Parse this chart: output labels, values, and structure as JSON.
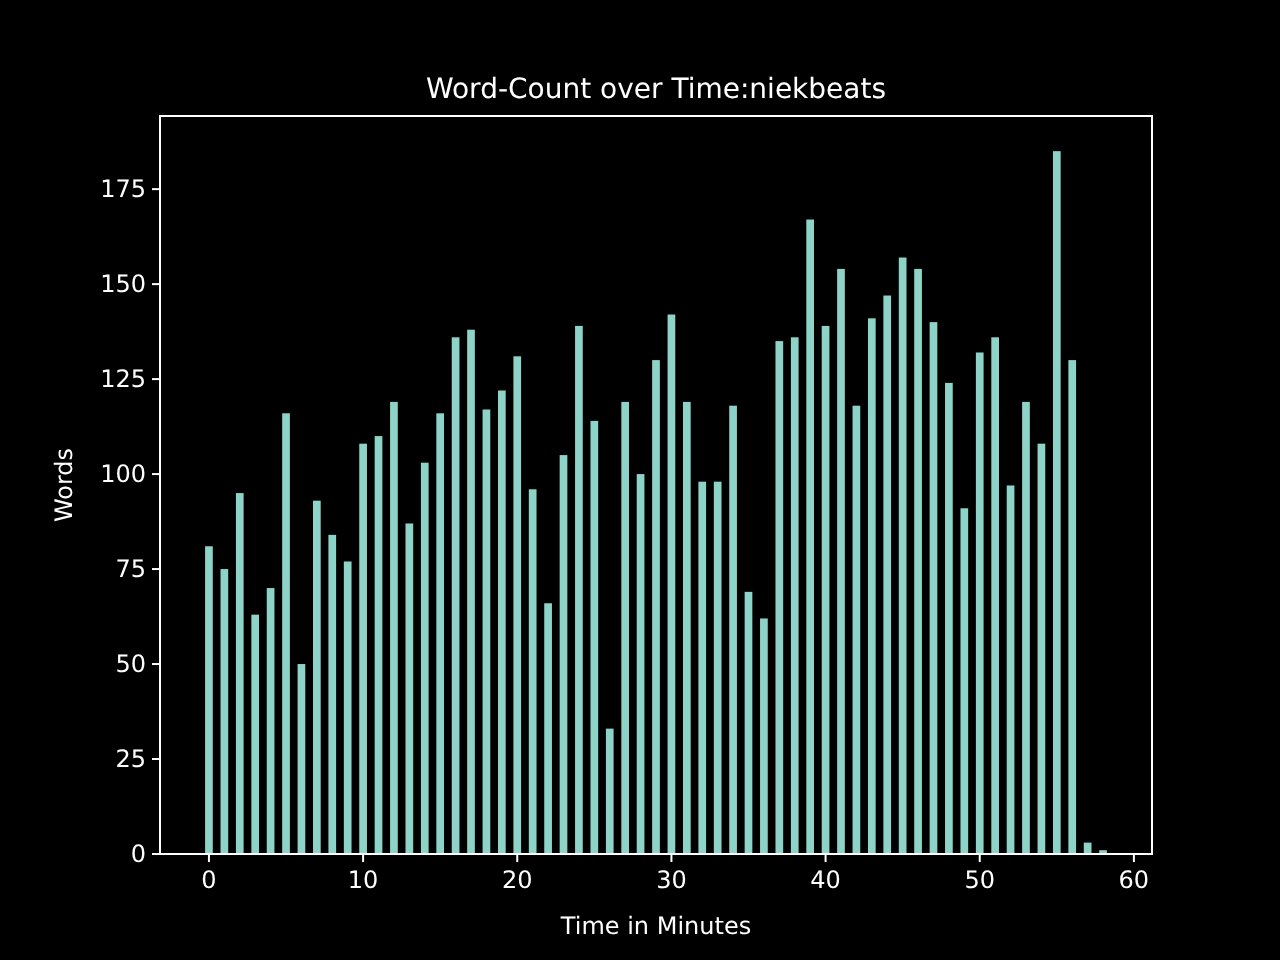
{
  "chart_data": {
    "type": "bar",
    "title": "Word-Count over Time:niekbeats",
    "xlabel": "Time in Minutes",
    "ylabel": "Words",
    "color": "#8dd3c7",
    "x": [
      0,
      1,
      2,
      3,
      4,
      5,
      6,
      7,
      8,
      9,
      10,
      11,
      12,
      13,
      14,
      15,
      16,
      17,
      18,
      19,
      20,
      21,
      22,
      23,
      24,
      25,
      26,
      27,
      28,
      29,
      30,
      31,
      32,
      33,
      34,
      35,
      36,
      37,
      38,
      39,
      40,
      41,
      42,
      43,
      44,
      45,
      46,
      47,
      48,
      49,
      50,
      51,
      52,
      53,
      54,
      55,
      56,
      57,
      58
    ],
    "values": [
      81,
      75,
      95,
      63,
      70,
      116,
      50,
      93,
      84,
      77,
      108,
      110,
      119,
      87,
      103,
      116,
      136,
      138,
      117,
      122,
      131,
      96,
      66,
      105,
      139,
      114,
      33,
      119,
      100,
      130,
      142,
      119,
      98,
      98,
      118,
      69,
      62,
      135,
      136,
      167,
      139,
      154,
      118,
      141,
      147,
      157,
      154,
      140,
      124,
      91,
      132,
      136,
      97,
      119,
      108,
      185,
      130,
      3,
      1
    ],
    "xlim": [
      -3.175,
      61.175
    ],
    "xticks": [
      0,
      10,
      20,
      30,
      40,
      50,
      60
    ],
    "ylim": [
      0,
      194.25
    ],
    "yticks": [
      0,
      25,
      50,
      75,
      100,
      125,
      150,
      175
    ]
  }
}
